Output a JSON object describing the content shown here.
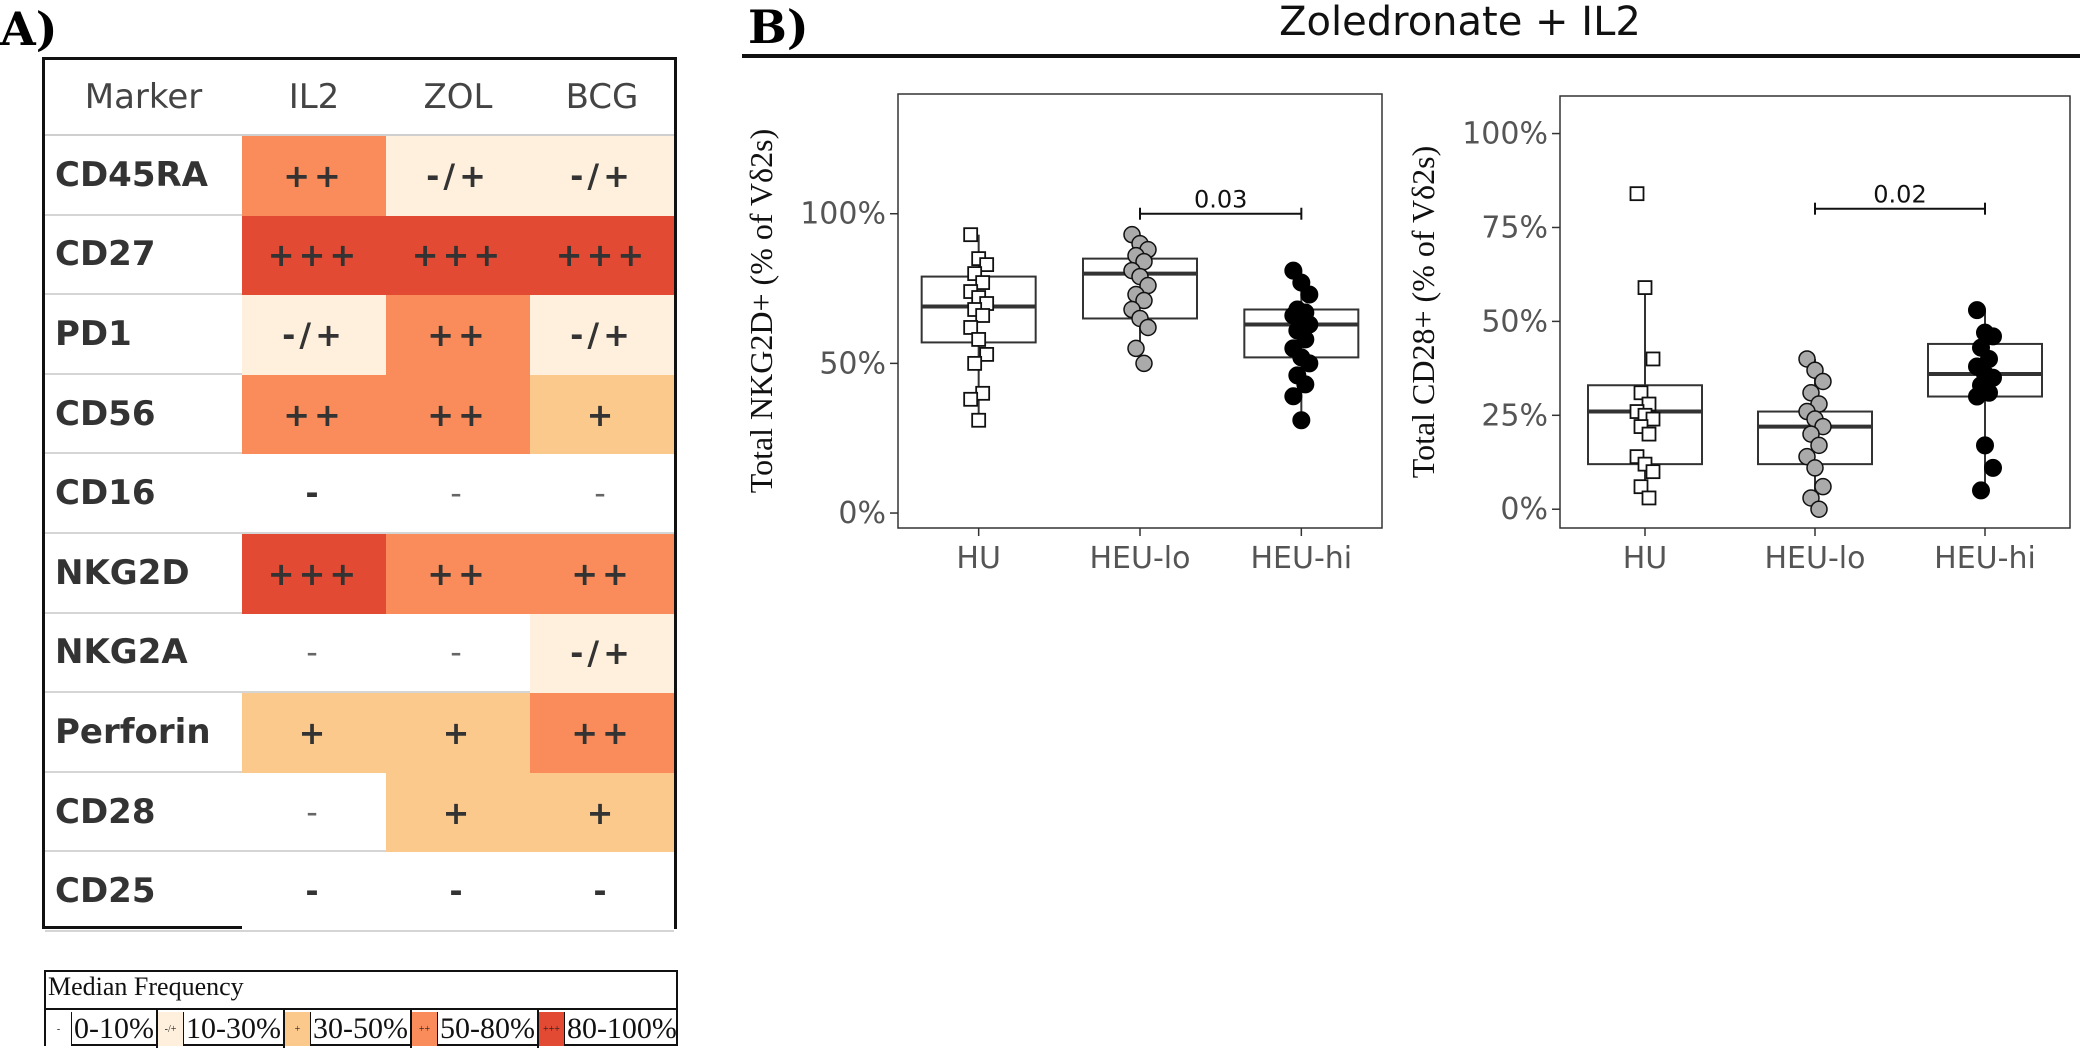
{
  "panel_a": {
    "label": "A)",
    "table": {
      "headers": [
        "Marker",
        "IL2",
        "ZOL",
        "BCG"
      ],
      "rows": [
        {
          "marker": "CD45RA",
          "cells": [
            {
              "text": "++",
              "level": 3
            },
            {
              "text": "-/+",
              "level": 1
            },
            {
              "text": "-/+",
              "level": 1
            }
          ]
        },
        {
          "marker": "CD27",
          "cells": [
            {
              "text": "+++",
              "level": 4
            },
            {
              "text": "+++",
              "level": 4
            },
            {
              "text": "+++",
              "level": 4
            }
          ]
        },
        {
          "marker": "PD1",
          "cells": [
            {
              "text": "-/+",
              "level": 1
            },
            {
              "text": "++",
              "level": 3
            },
            {
              "text": "-/+",
              "level": 1
            }
          ]
        },
        {
          "marker": "CD56",
          "cells": [
            {
              "text": "++",
              "level": 3
            },
            {
              "text": "++",
              "level": 3
            },
            {
              "text": "+",
              "level": 2
            }
          ]
        },
        {
          "marker": "CD16",
          "cells": [
            {
              "text": "-",
              "level": 0
            },
            {
              "text": "-",
              "level": 0,
              "light": true
            },
            {
              "text": "-",
              "level": 0,
              "light": true
            }
          ]
        },
        {
          "marker": "NKG2D",
          "cells": [
            {
              "text": "+++",
              "level": 4
            },
            {
              "text": "++",
              "level": 3
            },
            {
              "text": "++",
              "level": 3
            }
          ]
        },
        {
          "marker": "NKG2A",
          "cells": [
            {
              "text": "-",
              "level": 0,
              "light": true
            },
            {
              "text": "-",
              "level": 0,
              "light": true
            },
            {
              "text": "-/+",
              "level": 1
            }
          ]
        },
        {
          "marker": "Perforin",
          "cells": [
            {
              "text": "+",
              "level": 2
            },
            {
              "text": "+",
              "level": 2
            },
            {
              "text": "++",
              "level": 3
            }
          ]
        },
        {
          "marker": "CD28",
          "cells": [
            {
              "text": "-",
              "level": 0,
              "light": true
            },
            {
              "text": "+",
              "level": 2
            },
            {
              "text": "+",
              "level": 2
            }
          ]
        },
        {
          "marker": "CD25",
          "cells": [
            {
              "text": "-",
              "level": 0
            },
            {
              "text": "-",
              "level": 0
            },
            {
              "text": "-",
              "level": 0
            }
          ]
        }
      ]
    },
    "level_colors": [
      "#ffffff",
      "#fef0dc",
      "#fbc98c",
      "#f98c5a",
      "#e34a33"
    ],
    "legend": {
      "title": "Median Frequency",
      "items": [
        {
          "symbol": "-",
          "label": "0-10%",
          "level": 0
        },
        {
          "symbol": "-/+",
          "label": "10-30%",
          "level": 1
        },
        {
          "symbol": "+",
          "label": "30-50%",
          "level": 2
        },
        {
          "symbol": "++",
          "label": "50-80%",
          "level": 3
        },
        {
          "symbol": "+++",
          "label": "80-100%",
          "level": 4
        }
      ]
    }
  },
  "panel_b": {
    "label": "B)",
    "title": "Zoledronate + IL2"
  },
  "chart_data": [
    {
      "type": "box",
      "ylabel": "Total NKG2D+  (% of  Vδ2s)",
      "categories": [
        "HU",
        "HEU-lo",
        "HEU-hi"
      ],
      "ylim": [
        -5,
        140
      ],
      "yticks": [
        0,
        50,
        100
      ],
      "yticklabels": [
        "0%",
        "50%",
        "100%"
      ],
      "grid": false,
      "boxes": [
        {
          "group": "HU",
          "min": 31,
          "q1": 57,
          "median": 69,
          "q3": 79,
          "max": 93
        },
        {
          "group": "HEU-lo",
          "min": 50,
          "q1": 65,
          "median": 80,
          "q3": 85,
          "max": 93
        },
        {
          "group": "HEU-hi",
          "min": 31,
          "q1": 52,
          "median": 63,
          "q3": 68,
          "max": 81
        }
      ],
      "points": {
        "HU": [
          93,
          85,
          83,
          80,
          77,
          74,
          72,
          70,
          68,
          66,
          62,
          58,
          53,
          50,
          40,
          38,
          31
        ],
        "HEU-lo": [
          93,
          90,
          88,
          86,
          84,
          81,
          79,
          76,
          73,
          71,
          68,
          65,
          62,
          55,
          50
        ],
        "HEU-hi": [
          81,
          77,
          73,
          68,
          67,
          66,
          65,
          63,
          61,
          58,
          55,
          52,
          50,
          46,
          43,
          39,
          31
        ]
      },
      "point_styles": {
        "HU": "open-square",
        "HEU-lo": "grey-circle",
        "HEU-hi": "black-circle"
      },
      "significance": {
        "from": "HEU-lo",
        "to": "HEU-hi",
        "label": "0.03",
        "y": 100
      }
    },
    {
      "type": "box",
      "ylabel": "Total CD28+  (% of  Vδ2s)",
      "categories": [
        "HU",
        "HEU-lo",
        "HEU-hi"
      ],
      "ylim": [
        -5,
        110
      ],
      "yticks": [
        0,
        25,
        50,
        75,
        100
      ],
      "yticklabels": [
        "0%",
        "25%",
        "50%",
        "75%",
        "100%"
      ],
      "grid": false,
      "boxes": [
        {
          "group": "HU",
          "min": 3,
          "q1": 12,
          "median": 26,
          "q3": 33,
          "max": 59
        },
        {
          "group": "HEU-lo",
          "min": 0,
          "q1": 12,
          "median": 22,
          "q3": 26,
          "max": 40
        },
        {
          "group": "HEU-hi",
          "min": 5,
          "q1": 30,
          "median": 36,
          "q3": 44,
          "max": 53
        }
      ],
      "points": {
        "HU": [
          84,
          59,
          40,
          31,
          28,
          26,
          25,
          24,
          22,
          20,
          14,
          12,
          10,
          6,
          3
        ],
        "HEU-lo": [
          40,
          37,
          34,
          31,
          28,
          26,
          24,
          22,
          20,
          17,
          14,
          11,
          6,
          3,
          0
        ],
        "HEU-hi": [
          53,
          47,
          46,
          43,
          40,
          38,
          36,
          35,
          33,
          31,
          30,
          17,
          11,
          5
        ]
      },
      "point_styles": {
        "HU": "open-square",
        "HEU-lo": "grey-circle",
        "HEU-hi": "black-circle"
      },
      "significance": {
        "from": "HEU-lo",
        "to": "HEU-hi",
        "label": "0.02",
        "y": 80
      }
    }
  ]
}
